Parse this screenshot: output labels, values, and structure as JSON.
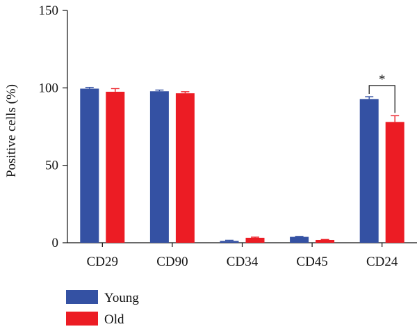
{
  "chart_data": {
    "type": "bar",
    "ylabel": "Positive cells (%)",
    "xlabel": "",
    "ylim": [
      0,
      150
    ],
    "yticks": [
      0,
      50,
      100,
      150
    ],
    "categories": [
      "CD29",
      "CD90",
      "CD34",
      "CD45",
      "CD24"
    ],
    "series": [
      {
        "name": "Young",
        "color": "#3451a3",
        "values": [
          99.5,
          97.8,
          1.2,
          3.8,
          92.8
        ],
        "errors": [
          0.8,
          0.8,
          0.4,
          0.3,
          1.5
        ]
      },
      {
        "name": "Old",
        "color": "#ec1c24",
        "values": [
          97.5,
          96.5,
          3.2,
          1.8,
          78.0
        ],
        "errors": [
          2.0,
          1.0,
          0.4,
          0.3,
          4.0
        ]
      }
    ],
    "annotations": [
      {
        "category": "CD24",
        "text": "*"
      }
    ],
    "legend_position": "bottom-left",
    "grid": false
  }
}
